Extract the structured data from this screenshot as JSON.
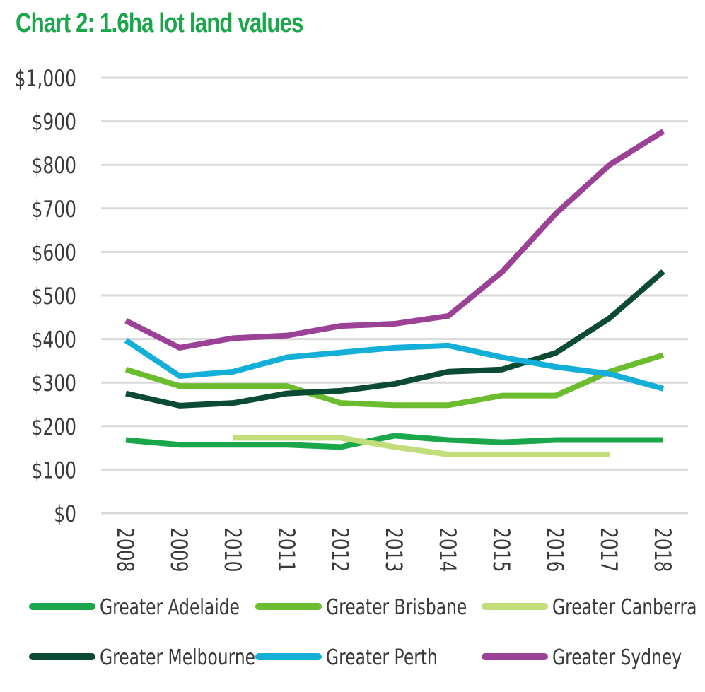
{
  "chart_data": {
    "type": "line",
    "title": "Chart 2: 1.6ha lot land values",
    "xlabel": "",
    "ylabel": "",
    "x": [
      "2008",
      "2009",
      "2010",
      "2011",
      "2012",
      "2013",
      "2014",
      "2015",
      "2016",
      "2017",
      "2018"
    ],
    "ylim": [
      0,
      1000
    ],
    "yticks": [
      0,
      100,
      200,
      300,
      400,
      500,
      600,
      700,
      800,
      900,
      1000
    ],
    "ytick_labels": [
      "$0",
      "$100",
      "$200",
      "$300",
      "$400",
      "$500",
      "$600",
      "$700",
      "$800",
      "$900",
      "$1,000"
    ],
    "grid": true,
    "legend_position": "bottom",
    "series": [
      {
        "name": "Greater Adelaide",
        "color": "#1aa64a",
        "values": [
          168,
          157,
          157,
          157,
          152,
          178,
          168,
          163,
          168,
          168,
          168
        ]
      },
      {
        "name": "Greater Brisbane",
        "color": "#6bbd2f",
        "values": [
          330,
          292,
          292,
          292,
          253,
          248,
          248,
          270,
          270,
          325,
          363
        ]
      },
      {
        "name": "Greater Canberra",
        "color": "#c2de7a",
        "values": [
          null,
          null,
          173,
          173,
          173,
          152,
          135,
          135,
          135,
          135,
          null
        ]
      },
      {
        "name": "Greater Melbourne",
        "color": "#0b4a33",
        "values": [
          275,
          247,
          253,
          275,
          281,
          297,
          325,
          330,
          368,
          448,
          555
        ]
      },
      {
        "name": "Greater Perth",
        "color": "#13afd9",
        "values": [
          397,
          315,
          325,
          358,
          369,
          380,
          385,
          358,
          336,
          320,
          286
        ]
      },
      {
        "name": "Greater Sydney",
        "color": "#9b4297",
        "values": [
          442,
          380,
          402,
          408,
          430,
          435,
          453,
          554,
          688,
          800,
          877
        ]
      }
    ]
  }
}
